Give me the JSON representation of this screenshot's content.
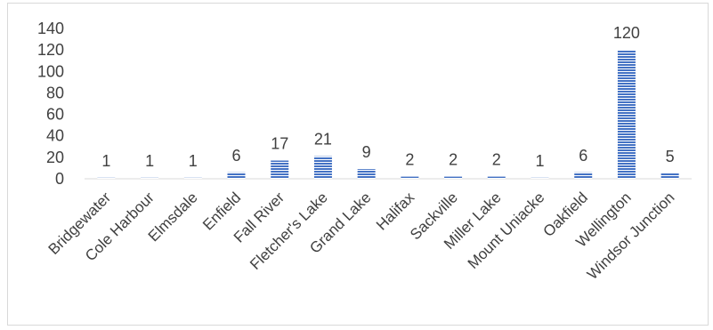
{
  "chart_data": {
    "type": "bar",
    "title": "",
    "xlabel": "",
    "ylabel": "",
    "categories": [
      "Bridgewater",
      "Cole Harbour",
      "Elmsdale",
      "Enfield",
      "Fall River",
      "Fletcher's Lake",
      "Grand Lake",
      "Halifax",
      "Sackville",
      "Miller Lake",
      "Mount Uniacke",
      "Oakfield",
      "Wellington",
      "Windsor Junction"
    ],
    "values": [
      1,
      1,
      1,
      6,
      17,
      21,
      9,
      2,
      2,
      2,
      1,
      6,
      120,
      5
    ],
    "data_labels": [
      "1",
      "1",
      "1",
      "6",
      "17",
      "21",
      "9",
      "2",
      "2",
      "2",
      "1",
      "6",
      "120",
      "5"
    ],
    "ylim": [
      0,
      140
    ],
    "yticks": [
      "0",
      "20",
      "40",
      "60",
      "80",
      "100",
      "120",
      "140"
    ],
    "grid": false,
    "legend": "none",
    "bar_color": "#4472c4",
    "bar_pattern": "horizontal-stripes"
  }
}
